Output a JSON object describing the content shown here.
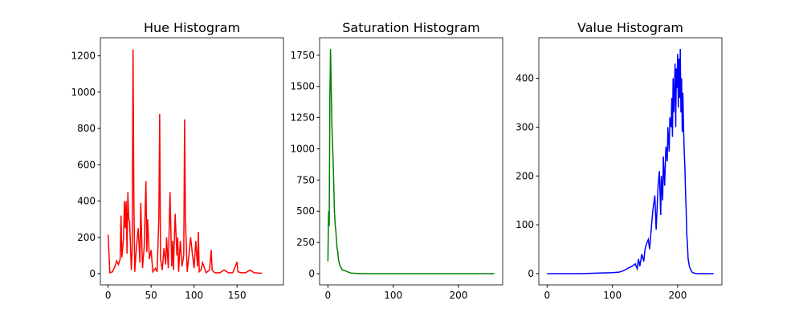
{
  "chart_data": [
    {
      "type": "line",
      "title": "Hue Histogram",
      "color": "#ff0000",
      "x": [
        0,
        2,
        5,
        8,
        10,
        12,
        14,
        15,
        16,
        18,
        19,
        20,
        21,
        22,
        23,
        24,
        25,
        27,
        28,
        29,
        30,
        31,
        33,
        35,
        37,
        38,
        40,
        42,
        44,
        45,
        46,
        48,
        50,
        52,
        55,
        57,
        59,
        60,
        61,
        63,
        65,
        67,
        68,
        70,
        72,
        74,
        75,
        76,
        78,
        80,
        81,
        82,
        84,
        86,
        88,
        89,
        90,
        92,
        94,
        96,
        98,
        100,
        102,
        104,
        105,
        106,
        108,
        110,
        114,
        118,
        120,
        121,
        124,
        130,
        135,
        140,
        145,
        150,
        151,
        155,
        160,
        165,
        170,
        175,
        179
      ],
      "values": [
        215,
        5,
        10,
        40,
        70,
        50,
        80,
        320,
        90,
        200,
        400,
        250,
        400,
        110,
        450,
        300,
        290,
        20,
        130,
        1236,
        400,
        10,
        150,
        250,
        60,
        390,
        30,
        150,
        510,
        120,
        300,
        80,
        130,
        10,
        30,
        10,
        300,
        880,
        80,
        20,
        140,
        50,
        200,
        30,
        450,
        40,
        180,
        20,
        330,
        100,
        200,
        10,
        180,
        40,
        100,
        850,
        300,
        10,
        100,
        200,
        110,
        30,
        180,
        40,
        230,
        10,
        20,
        60,
        5,
        20,
        130,
        20,
        5,
        5,
        20,
        5,
        5,
        65,
        10,
        5,
        5,
        20,
        5,
        3,
        2
      ],
      "xlim": [
        -9,
        204
      ],
      "ylim": [
        -62,
        1300
      ],
      "xticks": [
        0,
        50,
        100,
        150
      ],
      "yticks": [
        0,
        200,
        400,
        600,
        800,
        1000,
        1200
      ]
    },
    {
      "type": "line",
      "title": "Saturation Histogram",
      "color": "#008000",
      "x": [
        0,
        1,
        2,
        3,
        4,
        5,
        6,
        7,
        8,
        9,
        10,
        11,
        12,
        13,
        14,
        15,
        16,
        18,
        20,
        22,
        25,
        28,
        30,
        35,
        40,
        45,
        50,
        60,
        80,
        100,
        150,
        200,
        255
      ],
      "values": [
        100,
        500,
        380,
        1400,
        1800,
        1500,
        1200,
        1050,
        900,
        700,
        500,
        400,
        350,
        280,
        200,
        180,
        120,
        70,
        50,
        30,
        25,
        20,
        15,
        5,
        3,
        2,
        1,
        0,
        0,
        0,
        0,
        0,
        0
      ],
      "xlim": [
        -12.75,
        267.75
      ],
      "ylim": [
        -90,
        1890
      ],
      "xticks": [
        0,
        100,
        200
      ],
      "yticks": [
        0,
        250,
        500,
        750,
        1000,
        1250,
        1500,
        1750
      ]
    },
    {
      "type": "line",
      "title": "Value Histogram",
      "color": "#0000ff",
      "x": [
        0,
        50,
        100,
        110,
        115,
        120,
        125,
        130,
        135,
        138,
        140,
        142,
        145,
        148,
        150,
        152,
        155,
        157,
        160,
        162,
        165,
        167,
        170,
        172,
        174,
        175,
        177,
        178,
        180,
        182,
        184,
        185,
        187,
        188,
        190,
        191,
        192,
        193,
        194,
        195,
        196,
        197,
        198,
        199,
        200,
        201,
        202,
        203,
        204,
        205,
        206,
        207,
        208,
        209,
        210,
        211,
        212,
        213,
        214,
        215,
        216,
        218,
        220,
        222,
        225,
        230,
        240,
        255
      ],
      "values": [
        0,
        0,
        2,
        3,
        5,
        8,
        12,
        15,
        20,
        10,
        30,
        15,
        40,
        25,
        50,
        60,
        70,
        50,
        100,
        130,
        160,
        90,
        180,
        210,
        120,
        200,
        150,
        240,
        180,
        260,
        230,
        300,
        250,
        320,
        300,
        360,
        280,
        400,
        330,
        370,
        430,
        300,
        420,
        380,
        450,
        340,
        440,
        360,
        460,
        330,
        400,
        290,
        370,
        300,
        250,
        220,
        170,
        130,
        80,
        60,
        30,
        15,
        8,
        3,
        1,
        0,
        0,
        0
      ],
      "xlim": [
        -12.75,
        267.75
      ],
      "ylim": [
        -23,
        483
      ],
      "xticks": [
        0,
        100,
        200
      ],
      "yticks": [
        0,
        100,
        200,
        300,
        400
      ]
    }
  ]
}
